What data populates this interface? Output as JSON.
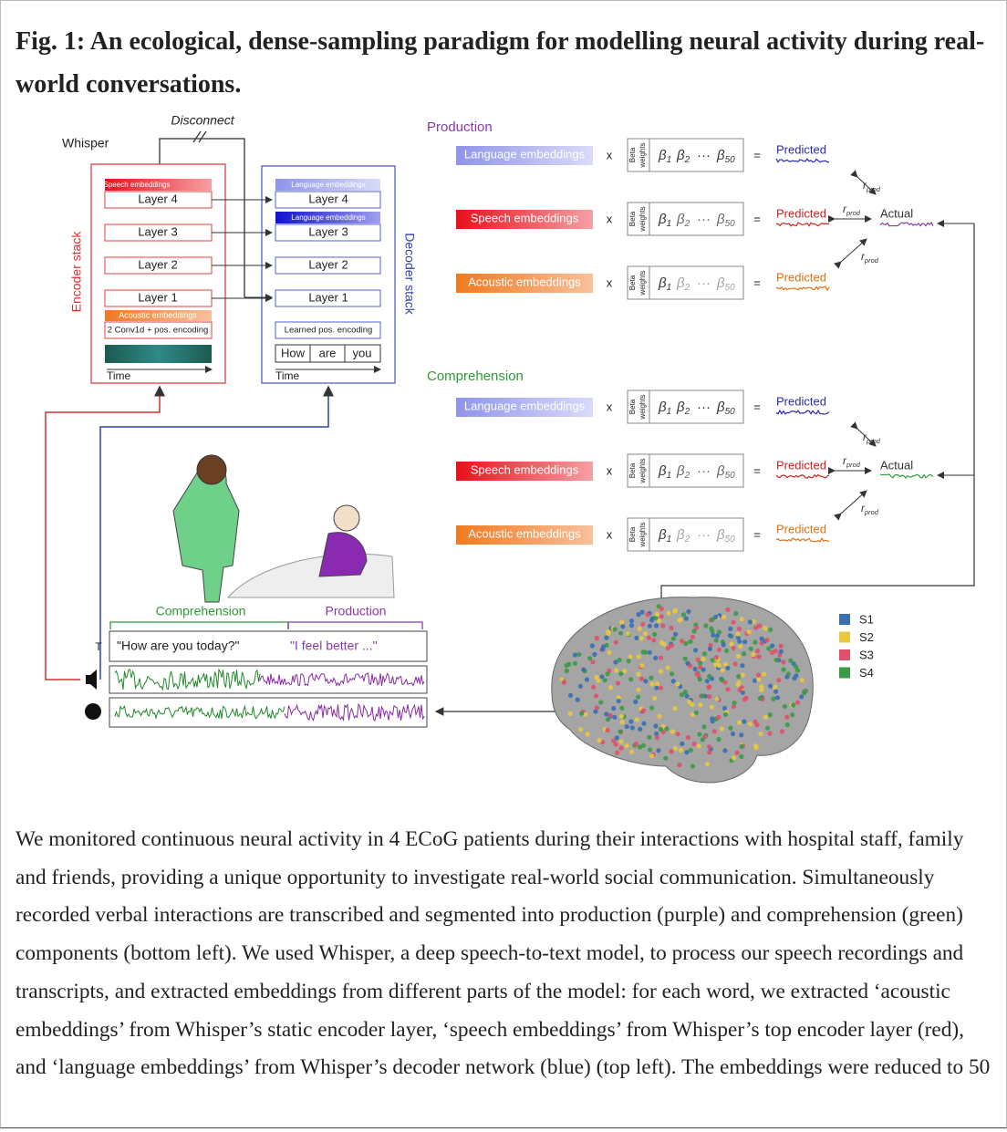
{
  "caption": {
    "title": "Fig. 1: An ecological, dense-sampling paradigm for modelling neural activity during real-world conversations.",
    "text": "We monitored continuous neural activity in 4 ECoG patients during their interactions with hospital staff, family and friends, providing a unique opportunity to investigate real-world social communication. Simultaneously recorded verbal interactions are transcribed and segmented into production (purple) and comprehension (green) components (bottom left). We used Whisper, a deep speech-to-text model, to process our speech recordings and transcripts, and extracted embeddings from different parts of the model: for each word, we extracted ‘acoustic embeddings’ from Whisper’s static encoder layer, ‘speech embeddings’ from Whisper’s top encoder layer (red), and ‘language embeddings’ from Whisper’s decoder network (blue) (top left). The embeddings were reduced to 50"
  },
  "whisper": {
    "label": "Whisper",
    "disconnect": "Disconnect",
    "encoder": {
      "stack": "Encoder stack",
      "speech_embeddings": "Speech embeddings",
      "layers": [
        "Layer 4",
        "Layer 3",
        "Layer 2",
        "Layer 1"
      ],
      "acoustic_embeddings": "Acoustic embeddings",
      "conv": "2 Conv1d + pos. encoding",
      "time": "Time"
    },
    "decoder": {
      "stack": "Decoder stack",
      "language_embeddings": [
        "Language embeddings",
        "Language embeddings"
      ],
      "layers": [
        "Layer 4",
        "Layer 3",
        "Layer 2",
        "Layer 1"
      ],
      "pos": "Learned pos. encoding",
      "tokens": [
        "How",
        "are",
        "you"
      ],
      "time": "Time"
    }
  },
  "panels": [
    {
      "title": "Production",
      "color": "#8a3aa8",
      "actual": "Actual",
      "r_labels": [
        [
          "r",
          "prod"
        ],
        [
          "r",
          "prod"
        ],
        [
          "r",
          "prod"
        ]
      ],
      "rows": [
        {
          "embedding": "Language embeddings",
          "times": "x",
          "beta": [
            "Beta",
            "weights"
          ],
          "coefficients": [
            [
              "β",
              "1"
            ],
            [
              "β",
              "2"
            ],
            [
              "···"
            ],
            [
              "β",
              "50"
            ]
          ],
          "equals": "=",
          "result": "Predicted"
        },
        {
          "embedding": "Speech embeddings",
          "times": "x",
          "beta": [
            "Beta",
            "weights"
          ],
          "coefficients": [
            [
              "β",
              "1"
            ],
            [
              "β",
              "2"
            ],
            [
              "···"
            ],
            [
              "β",
              "50"
            ]
          ],
          "equals": "=",
          "result": "Predicted"
        },
        {
          "embedding": "Acoustic embeddings",
          "times": "x",
          "beta": [
            "Beta",
            "weights"
          ],
          "coefficients": [
            [
              "β",
              "1"
            ],
            [
              "β",
              "2"
            ],
            [
              "···"
            ],
            [
              "β",
              "50"
            ]
          ],
          "equals": "=",
          "result": "Predicted"
        }
      ]
    },
    {
      "title": "Comprehension",
      "color": "#2f9a3a",
      "actual": "Actual",
      "r_labels": [
        [
          "r",
          "prod"
        ],
        [
          "r",
          "prod"
        ],
        [
          "r",
          "prod"
        ]
      ],
      "rows": [
        {
          "embedding": "Language embeddings",
          "times": "x",
          "beta": [
            "Beta",
            "weights"
          ],
          "coefficients": [
            [
              "β",
              "1"
            ],
            [
              "β",
              "2"
            ],
            [
              "···"
            ],
            [
              "β",
              "50"
            ]
          ],
          "equals": "=",
          "result": "Predicted"
        },
        {
          "embedding": "Speech embeddings",
          "times": "x",
          "beta": [
            "Beta",
            "weights"
          ],
          "coefficients": [
            [
              "β",
              "1"
            ],
            [
              "β",
              "2"
            ],
            [
              "···"
            ],
            [
              "β",
              "50"
            ]
          ],
          "equals": "=",
          "result": "Predicted"
        },
        {
          "embedding": "Acoustic embeddings",
          "times": "x",
          "beta": [
            "Beta",
            "weights"
          ],
          "coefficients": [
            [
              "β",
              "1"
            ],
            [
              "β",
              "2"
            ],
            [
              "···"
            ],
            [
              "β",
              "50"
            ]
          ],
          "equals": "=",
          "result": "Predicted"
        }
      ]
    }
  ],
  "conversation": {
    "comprehension": "Comprehension",
    "production": "Production",
    "transcript_label": "T",
    "utterances": [
      "\"How are you today?\"",
      "\"I feel better ...\""
    ]
  },
  "legend": [
    {
      "name": "S1",
      "color": "#3a6fb0"
    },
    {
      "name": "S2",
      "color": "#e8c840"
    },
    {
      "name": "S3",
      "color": "#e0506a"
    },
    {
      "name": "S4",
      "color": "#3a9a48"
    }
  ]
}
